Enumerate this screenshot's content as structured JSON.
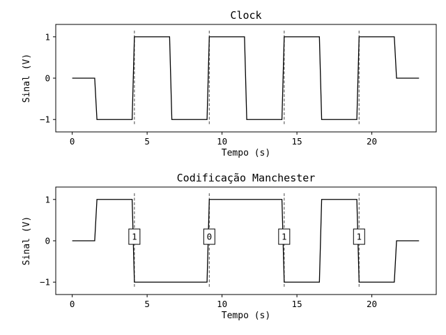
{
  "chart_data": [
    {
      "type": "line",
      "title": "Clock",
      "xlabel": "Tempo (s)",
      "ylabel": "Sinal (V)",
      "xlim": [
        -1.1,
        24.3
      ],
      "ylim": [
        -1.3,
        1.3
      ],
      "xticks": [
        0,
        5,
        10,
        15,
        20
      ],
      "yticks": [
        -1,
        0,
        1
      ],
      "xtick_labels": [
        "0",
        "5",
        "10",
        "15",
        "20"
      ],
      "ytick_labels": [
        "−1",
        "0",
        "1"
      ],
      "color": "#000000",
      "vlines": [
        4.15,
        9.15,
        14.15,
        19.15
      ],
      "vline_color": "#666666",
      "x": [
        0,
        1.5,
        1.65,
        4.0,
        4.15,
        6.5,
        6.65,
        9.0,
        9.15,
        11.5,
        11.65,
        14.0,
        14.15,
        16.5,
        16.65,
        19.0,
        19.15,
        21.5,
        21.65,
        23.15
      ],
      "y": [
        0,
        0,
        -1,
        -1,
        1,
        1,
        -1,
        -1,
        1,
        1,
        -1,
        -1,
        1,
        1,
        -1,
        -1,
        1,
        1,
        0,
        0
      ]
    },
    {
      "type": "line",
      "title": "Codificação Manchester",
      "xlabel": "Tempo (s)",
      "ylabel": "Sinal (V)",
      "xlim": [
        -1.1,
        24.3
      ],
      "ylim": [
        -1.3,
        1.3
      ],
      "xticks": [
        0,
        5,
        10,
        15,
        20
      ],
      "yticks": [
        -1,
        0,
        1
      ],
      "xtick_labels": [
        "0",
        "5",
        "10",
        "15",
        "20"
      ],
      "ytick_labels": [
        "−1",
        "0",
        "1"
      ],
      "color": "#000000",
      "vlines": [
        4.15,
        9.15,
        14.15,
        19.15
      ],
      "vline_color": "#666666",
      "x": [
        0,
        1.5,
        1.65,
        4.0,
        4.15,
        9.0,
        9.15,
        14.0,
        14.15,
        16.5,
        16.65,
        19.0,
        19.15,
        21.5,
        21.65,
        23.15
      ],
      "y": [
        0,
        0,
        1,
        1,
        -1,
        -1,
        1,
        1,
        -1,
        -1,
        1,
        1,
        -1,
        -1,
        0,
        0
      ],
      "bit_labels": [
        {
          "x": 4.15,
          "y": 0.1,
          "text": "1"
        },
        {
          "x": 9.15,
          "y": 0.1,
          "text": "0"
        },
        {
          "x": 14.15,
          "y": 0.1,
          "text": "1"
        },
        {
          "x": 19.15,
          "y": 0.1,
          "text": "1"
        }
      ]
    }
  ]
}
